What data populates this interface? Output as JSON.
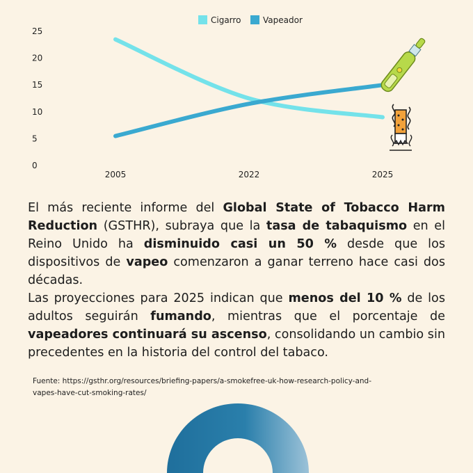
{
  "chart_data": {
    "type": "line",
    "categories": [
      "2005",
      "2022",
      "2025"
    ],
    "series": [
      {
        "name": "Cigarro",
        "values": [
          23.5,
          12.5,
          9
        ],
        "color": "#74e2ea"
      },
      {
        "name": "Vapeador",
        "values": [
          5.5,
          11.5,
          15
        ],
        "color": "#3aa9d0"
      }
    ],
    "ylim": [
      0,
      25
    ],
    "yticks": [
      0,
      5,
      10,
      15,
      20,
      25
    ],
    "legend_position": "top-center",
    "grid": false
  },
  "text": {
    "p1": [
      {
        "t": "El más reciente informe del ",
        "b": false
      },
      {
        "t": "Global State of Tobacco Harm Reduction",
        "b": true
      },
      {
        "t": " (GSTHR), subraya que la ",
        "b": false
      },
      {
        "t": "tasa de tabaquismo",
        "b": true
      },
      {
        "t": " en el Reino Unido ha ",
        "b": false
      },
      {
        "t": "disminuido casi un 50 %",
        "b": true
      },
      {
        "t": " desde que los dispositivos de ",
        "b": false
      },
      {
        "t": "vapeo",
        "b": true
      },
      {
        "t": " comenzaron a ganar terreno hace casi dos décadas.",
        "b": false
      }
    ],
    "p2": [
      {
        "t": "Las proyecciones para 2025 indican que ",
        "b": false
      },
      {
        "t": "menos del 10 %",
        "b": true
      },
      {
        "t": " de los adultos seguirán ",
        "b": false
      },
      {
        "t": "fumando",
        "b": true
      },
      {
        "t": ", mientras que el porcentaje de ",
        "b": false
      },
      {
        "t": "vapeadores continuará su ascenso",
        "b": true
      },
      {
        "t": ", consolidando un cambio sin precedentes en la historia del control del tabaco.",
        "b": false
      }
    ]
  },
  "source": {
    "line1": "Fuente: https://gsthr.org/resources/briefing-papers/a-smokefree-uk-how-research-policy-and-",
    "line2": "vapes-have-cut-smoking-rates/"
  },
  "icons": {
    "vape": "vape-pen-icon",
    "cigarette": "cigarette-butt-icon",
    "donut": "donut-shape"
  },
  "colors": {
    "background": "#fbf3e5",
    "donut": "#1f6f9c"
  }
}
